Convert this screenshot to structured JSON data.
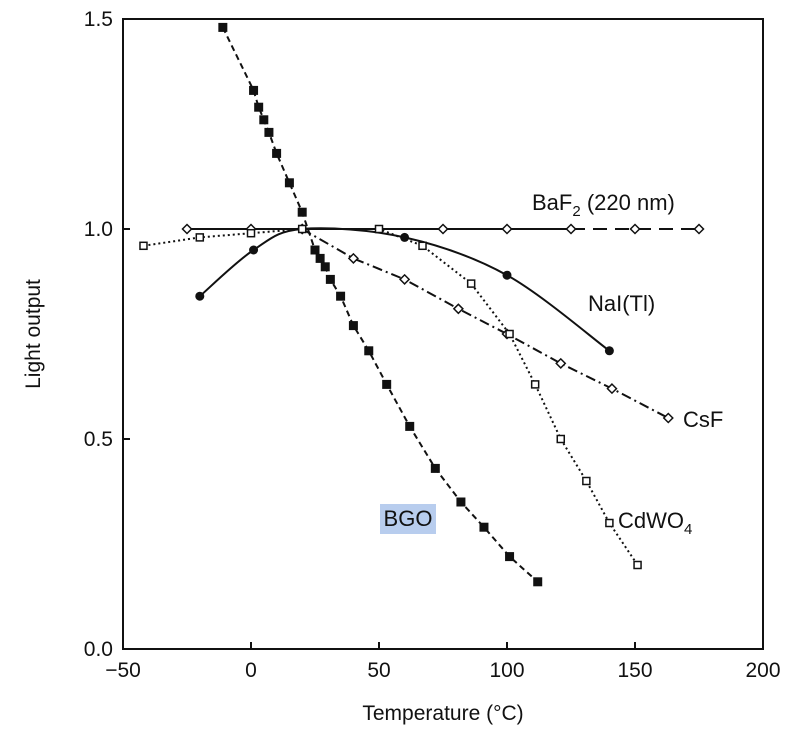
{
  "chart_data": {
    "type": "line",
    "title": "",
    "xlabel": "Temperature (°C)",
    "ylabel": "Light output",
    "xlim": [
      -50,
      200
    ],
    "ylim": [
      0,
      1.5
    ],
    "xticks": [
      -50,
      0,
      50,
      100,
      150,
      200
    ],
    "xtick_labels": [
      "−50",
      "0",
      "50",
      "100",
      "150",
      "200"
    ],
    "yticks": [
      0,
      0.5,
      1.0,
      1.5
    ],
    "ytick_labels": [
      "0.0",
      "0.5",
      "1.0",
      "1.5"
    ],
    "grid": false,
    "legend": "none",
    "series": [
      {
        "name": "BGO",
        "marker": "filled-square",
        "line": "dashed",
        "highlight": "#b8cdee",
        "x": [
          -11,
          1,
          3,
          5,
          7,
          10,
          15,
          20,
          25,
          27,
          29,
          31,
          35,
          40,
          46,
          53,
          62,
          72,
          82,
          91,
          101,
          112
        ],
        "y": [
          1.48,
          1.33,
          1.29,
          1.26,
          1.23,
          1.18,
          1.11,
          1.04,
          0.95,
          0.93,
          0.91,
          0.88,
          0.84,
          0.77,
          0.71,
          0.63,
          0.53,
          0.43,
          0.35,
          0.29,
          0.22,
          0.16
        ]
      },
      {
        "name": "BaF2 (220 nm)",
        "label_parts": {
          "base": "BaF",
          "sub": "2",
          "suffix": " (220 nm)"
        },
        "marker": "open-diamond",
        "line": "solid-dashed",
        "x": [
          -25,
          0,
          20,
          75,
          100,
          125,
          150,
          175
        ],
        "y": [
          1.0,
          1.0,
          1.0,
          1.0,
          1.0,
          1.0,
          1.0,
          1.0
        ]
      },
      {
        "name": "NaI(Tl)",
        "marker": "filled-circle",
        "line": "solid",
        "x": [
          -20,
          1,
          20,
          60,
          100,
          140
        ],
        "y": [
          0.84,
          0.95,
          1.0,
          0.98,
          0.89,
          0.71
        ]
      },
      {
        "name": "CsF",
        "marker": "open-diamond",
        "line": "dash-dot",
        "x": [
          20,
          40,
          60,
          81,
          100,
          121,
          141,
          163
        ],
        "y": [
          1.0,
          0.93,
          0.88,
          0.81,
          0.75,
          0.68,
          0.62,
          0.55
        ]
      },
      {
        "name": "CdWO4",
        "label_parts": {
          "base": "CdWO",
          "sub": "4",
          "suffix": ""
        },
        "marker": "open-square",
        "line": "dotted",
        "x": [
          -42,
          -20,
          0,
          20,
          50,
          67,
          86,
          101,
          111,
          121,
          131,
          140,
          151
        ],
        "y": [
          0.96,
          0.98,
          0.99,
          1.0,
          1.0,
          0.96,
          0.87,
          0.75,
          0.63,
          0.5,
          0.4,
          0.3,
          0.2
        ]
      }
    ]
  }
}
